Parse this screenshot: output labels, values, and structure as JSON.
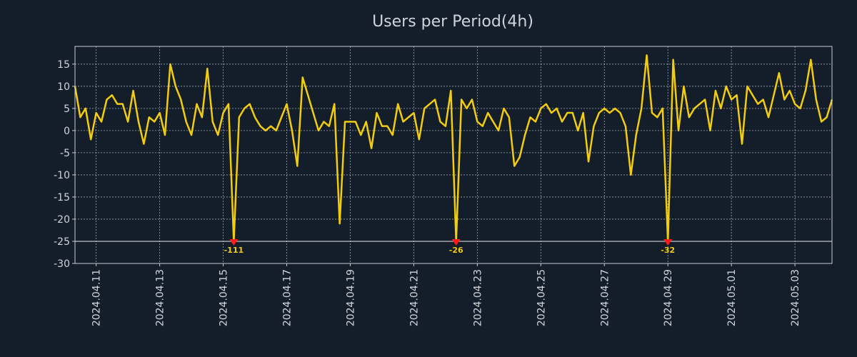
{
  "chart_data": {
    "type": "line",
    "title": "Users per Period(4h)",
    "xlabel": "",
    "ylabel": "",
    "ylim": [
      -30,
      19
    ],
    "yticks": [
      -30,
      -25,
      -20,
      -15,
      -10,
      -5,
      0,
      5,
      10,
      15
    ],
    "x_start": "2024.04.10 08:00",
    "x_end": "2024.05.03 20:00",
    "interval_hours": 4,
    "xtick_labels": [
      "2024.04.11",
      "2024.04.13",
      "2024.04.15",
      "2024.04.17",
      "2024.04.19",
      "2024.04.21",
      "2024.04.23",
      "2024.04.25",
      "2024.04.27",
      "2024.04.29",
      "2024.05.01",
      "2024.05.03"
    ],
    "xtick_positions_days": [
      0.6667,
      2.6667,
      4.6667,
      6.6667,
      8.6667,
      10.6667,
      12.6667,
      14.6667,
      16.6667,
      18.6667,
      20.6667,
      22.6667
    ],
    "clip_value": -25,
    "series": [
      {
        "name": "Users",
        "color": "#f2cc0f",
        "values": [
          10,
          3,
          5,
          -2,
          4,
          2,
          7,
          8,
          6,
          6,
          2,
          9,
          2,
          -3,
          3,
          2,
          4,
          -1,
          15,
          10,
          7,
          2,
          -1,
          6,
          3,
          14,
          2,
          -1,
          4,
          6,
          -25,
          3,
          5,
          6,
          3,
          1,
          0,
          1,
          0,
          3,
          6,
          0,
          -8,
          12,
          8,
          4,
          0,
          2,
          1,
          6,
          -21,
          2,
          2,
          2,
          -1,
          2,
          -4,
          4,
          1,
          1,
          -1,
          6,
          2,
          3,
          4,
          -2,
          5,
          6,
          7,
          2,
          1,
          9,
          -25,
          7,
          5,
          7,
          2,
          1,
          4,
          2,
          0,
          5,
          3,
          -8,
          -6,
          -1,
          3,
          2,
          5,
          6,
          4,
          5,
          2,
          4,
          4,
          0,
          4,
          -7,
          1,
          4,
          5,
          4,
          5,
          4,
          1,
          -10,
          -1,
          5,
          17,
          4,
          3,
          5,
          -25,
          16,
          0,
          10,
          3,
          5,
          6,
          7,
          0,
          9,
          5,
          10,
          7,
          8,
          -3,
          10,
          8,
          6,
          7,
          3,
          8,
          13,
          7,
          9,
          6,
          5,
          9,
          16,
          7,
          2,
          3,
          7
        ]
      }
    ],
    "annotations": [
      {
        "index": 30,
        "value": -25,
        "label": "-111"
      },
      {
        "index": 72,
        "value": -25,
        "label": "-26"
      },
      {
        "index": 112,
        "value": -25,
        "label": "-32"
      }
    ]
  }
}
